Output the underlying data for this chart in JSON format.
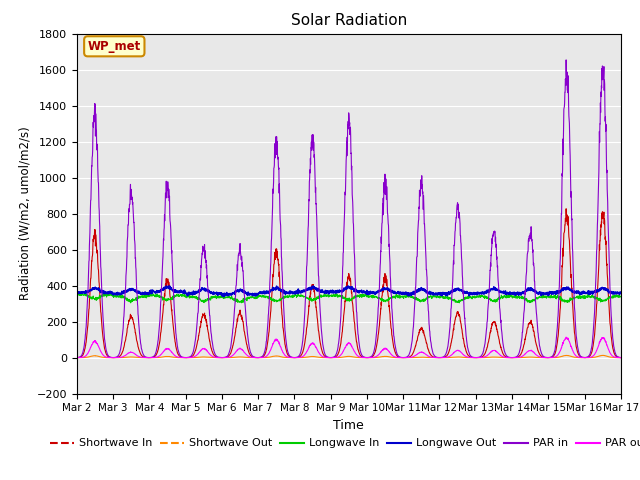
{
  "title": "Solar Radiation",
  "xlabel": "Time",
  "ylabel": "Radiation (W/m2, umol/m2/s)",
  "ylim": [
    -200,
    1800
  ],
  "xlim": [
    0,
    15
  ],
  "yticks": [
    -200,
    0,
    200,
    400,
    600,
    800,
    1000,
    1200,
    1400,
    1600,
    1800
  ],
  "xtick_labels": [
    "Mar 2",
    "Mar 3",
    "Mar 4",
    "Mar 5",
    "Mar 6",
    "Mar 7",
    "Mar 8",
    "Mar 9",
    "Mar 10",
    "Mar 11",
    "Mar 12",
    "Mar 13",
    "Mar 14",
    "Mar 15",
    "Mar 16",
    "Mar 17"
  ],
  "legend_labels": [
    "Shortwave In",
    "Shortwave Out",
    "Longwave In",
    "Longwave Out",
    "PAR in",
    "PAR out"
  ],
  "legend_colors": [
    "#cc0000",
    "#ff8800",
    "#00cc00",
    "#0000cc",
    "#8800cc",
    "#ff00ff"
  ],
  "background_color": "#e8e8e8",
  "annotation_text": "WP_met",
  "annotation_bg": "#ffffcc",
  "annotation_border": "#cc8800",
  "par_peaks": [
    1350,
    920,
    960,
    610,
    600,
    1200,
    1220,
    1310,
    960,
    960,
    840,
    700,
    700,
    1600,
    1600
  ],
  "sw_peaks": [
    680,
    230,
    430,
    240,
    250,
    590,
    400,
    450,
    440,
    160,
    250,
    200,
    200,
    800,
    800
  ],
  "par_out_peaks": [
    90,
    30,
    50,
    50,
    50,
    100,
    80,
    80,
    50,
    30,
    40,
    40,
    40,
    110,
    110
  ],
  "lw_in_base": [
    350,
    340,
    345,
    338,
    335,
    340,
    345,
    345,
    340,
    340,
    335,
    340,
    338,
    338,
    340
  ],
  "lw_out_base": [
    360,
    355,
    365,
    355,
    350,
    360,
    365,
    365,
    360,
    355,
    355,
    358,
    355,
    360,
    360
  ]
}
